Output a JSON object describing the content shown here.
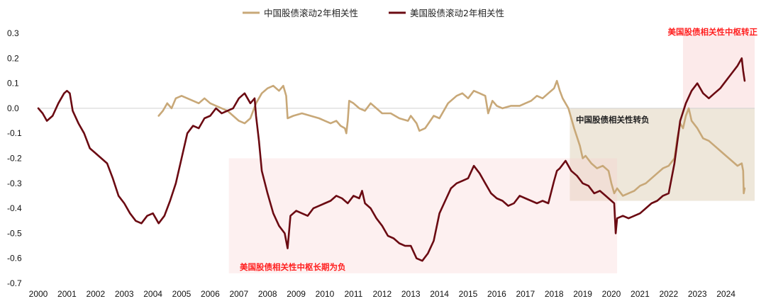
{
  "chart_data": {
    "type": "line",
    "ylim": [
      -0.7,
      0.3
    ],
    "xlim": [
      2000,
      2025
    ],
    "yticks": [
      "0.3",
      "0.2",
      "0.1",
      "0.0",
      "-0.1",
      "-0.2",
      "-0.3",
      "-0.4",
      "-0.5",
      "-0.6",
      "-0.7"
    ],
    "xticks": [
      "2000",
      "2001",
      "2002",
      "2003",
      "2004",
      "2005",
      "2006",
      "2007",
      "2008",
      "2009",
      "2010",
      "2011",
      "2012",
      "2013",
      "2014",
      "2015",
      "2016",
      "2017",
      "2018",
      "2019",
      "2020",
      "2021",
      "2022",
      "2023",
      "2024"
    ],
    "legend_position": "top-center",
    "series": [
      {
        "name": "中国股债滚动2年相关性",
        "color": "#c8a878",
        "x": [
          2004.2,
          2004.35,
          2004.5,
          2004.65,
          2004.8,
          2005.0,
          2005.2,
          2005.4,
          2005.6,
          2005.8,
          2006.0,
          2006.2,
          2006.4,
          2006.6,
          2006.8,
          2007.0,
          2007.2,
          2007.4,
          2007.6,
          2007.8,
          2008.0,
          2008.2,
          2008.4,
          2008.55,
          2008.65,
          2008.7,
          2008.9,
          2009.2,
          2009.5,
          2009.8,
          2010.0,
          2010.2,
          2010.4,
          2010.55,
          2010.7,
          2010.75,
          2010.8,
          2010.85,
          2011.0,
          2011.2,
          2011.4,
          2011.6,
          2011.8,
          2012.0,
          2012.3,
          2012.6,
          2012.9,
          2013.0,
          2013.2,
          2013.3,
          2013.5,
          2013.8,
          2014.0,
          2014.3,
          2014.6,
          2014.8,
          2015.0,
          2015.2,
          2015.4,
          2015.6,
          2015.7,
          2015.85,
          2016.0,
          2016.2,
          2016.5,
          2016.8,
          2017.0,
          2017.2,
          2017.4,
          2017.6,
          2017.8,
          2018.0,
          2018.1,
          2018.2,
          2018.3,
          2018.5,
          2018.7,
          2018.9,
          2019.0,
          2019.1,
          2019.3,
          2019.5,
          2019.7,
          2019.9,
          2020.0,
          2020.1,
          2020.2,
          2020.4,
          2020.6,
          2020.8,
          2021.0,
          2021.2,
          2021.4,
          2021.6,
          2021.8,
          2022.0,
          2022.2,
          2022.3,
          2022.4,
          2022.5,
          2022.6,
          2022.7,
          2022.8,
          2023.0,
          2023.2,
          2023.4,
          2023.6,
          2023.8,
          2024.0,
          2024.2,
          2024.4,
          2024.55,
          2024.6,
          2024.62,
          2024.65
        ],
        "values": [
          -0.03,
          -0.01,
          0.02,
          0.0,
          0.04,
          0.05,
          0.04,
          0.03,
          0.02,
          0.04,
          0.02,
          0.01,
          0.0,
          -0.01,
          -0.03,
          -0.05,
          -0.06,
          -0.04,
          0.02,
          0.06,
          0.08,
          0.09,
          0.07,
          0.09,
          0.05,
          -0.04,
          -0.03,
          -0.02,
          -0.03,
          -0.04,
          -0.05,
          -0.06,
          -0.05,
          -0.07,
          -0.08,
          -0.1,
          -0.05,
          0.03,
          0.02,
          0.0,
          -0.01,
          0.02,
          0.0,
          -0.02,
          -0.02,
          -0.04,
          -0.05,
          -0.03,
          -0.06,
          -0.09,
          -0.08,
          -0.03,
          -0.04,
          0.02,
          0.05,
          0.06,
          0.04,
          0.07,
          0.06,
          0.05,
          -0.02,
          0.03,
          0.01,
          0.0,
          0.01,
          0.01,
          0.02,
          0.03,
          0.05,
          0.04,
          0.06,
          0.08,
          0.11,
          0.07,
          0.04,
          0.0,
          -0.08,
          -0.15,
          -0.2,
          -0.19,
          -0.22,
          -0.24,
          -0.23,
          -0.25,
          -0.3,
          -0.34,
          -0.32,
          -0.35,
          -0.34,
          -0.33,
          -0.31,
          -0.3,
          -0.28,
          -0.26,
          -0.24,
          -0.23,
          -0.2,
          -0.12,
          -0.06,
          -0.08,
          -0.03,
          0.0,
          -0.05,
          -0.08,
          -0.12,
          -0.13,
          -0.15,
          -0.17,
          -0.19,
          -0.21,
          -0.23,
          -0.22,
          -0.25,
          -0.34,
          -0.32
        ]
      },
      {
        "name": "美国股债滚动2年相关性",
        "color": "#6b0a12",
        "x": [
          2000.0,
          2000.15,
          2000.3,
          2000.5,
          2000.7,
          2000.9,
          2001.0,
          2001.1,
          2001.2,
          2001.4,
          2001.6,
          2001.8,
          2002.0,
          2002.2,
          2002.4,
          2002.6,
          2002.8,
          2003.0,
          2003.2,
          2003.4,
          2003.6,
          2003.8,
          2004.0,
          2004.2,
          2004.4,
          2004.6,
          2004.8,
          2005.0,
          2005.2,
          2005.4,
          2005.6,
          2005.8,
          2006.0,
          2006.2,
          2006.4,
          2006.6,
          2006.8,
          2007.0,
          2007.2,
          2007.4,
          2007.55,
          2007.6,
          2007.7,
          2007.8,
          2008.0,
          2008.2,
          2008.4,
          2008.6,
          2008.7,
          2008.8,
          2009.0,
          2009.2,
          2009.4,
          2009.6,
          2009.8,
          2010.0,
          2010.2,
          2010.4,
          2010.6,
          2010.8,
          2011.0,
          2011.2,
          2011.3,
          2011.4,
          2011.6,
          2011.8,
          2012.0,
          2012.2,
          2012.4,
          2012.6,
          2012.8,
          2013.0,
          2013.2,
          2013.4,
          2013.6,
          2013.8,
          2014.0,
          2014.2,
          2014.4,
          2014.6,
          2014.8,
          2015.0,
          2015.2,
          2015.4,
          2015.6,
          2015.8,
          2016.0,
          2016.2,
          2016.4,
          2016.6,
          2016.8,
          2017.0,
          2017.2,
          2017.4,
          2017.6,
          2017.8,
          2018.0,
          2018.1,
          2018.2,
          2018.4,
          2018.6,
          2018.8,
          2019.0,
          2019.2,
          2019.4,
          2019.6,
          2019.8,
          2020.0,
          2020.1,
          2020.15,
          2020.2,
          2020.4,
          2020.6,
          2020.8,
          2021.0,
          2021.2,
          2021.4,
          2021.6,
          2021.8,
          2022.0,
          2022.2,
          2022.4,
          2022.6,
          2022.8,
          2023.0,
          2023.2,
          2023.4,
          2023.6,
          2023.8,
          2024.0,
          2024.2,
          2024.4,
          2024.55,
          2024.6,
          2024.65
        ],
        "values": [
          0.0,
          -0.02,
          -0.05,
          -0.03,
          0.02,
          0.06,
          0.07,
          0.06,
          -0.01,
          -0.06,
          -0.1,
          -0.16,
          -0.18,
          -0.2,
          -0.22,
          -0.28,
          -0.35,
          -0.38,
          -0.42,
          -0.45,
          -0.46,
          -0.43,
          -0.42,
          -0.46,
          -0.43,
          -0.37,
          -0.3,
          -0.2,
          -0.1,
          -0.07,
          -0.08,
          -0.04,
          -0.03,
          0.0,
          -0.02,
          -0.01,
          0.0,
          0.04,
          0.06,
          0.02,
          0.04,
          -0.03,
          -0.13,
          -0.25,
          -0.34,
          -0.42,
          -0.47,
          -0.5,
          -0.56,
          -0.43,
          -0.41,
          -0.42,
          -0.43,
          -0.4,
          -0.39,
          -0.38,
          -0.37,
          -0.35,
          -0.36,
          -0.38,
          -0.35,
          -0.36,
          -0.33,
          -0.38,
          -0.4,
          -0.44,
          -0.47,
          -0.51,
          -0.52,
          -0.54,
          -0.55,
          -0.55,
          -0.6,
          -0.61,
          -0.58,
          -0.53,
          -0.42,
          -0.37,
          -0.32,
          -0.3,
          -0.29,
          -0.28,
          -0.23,
          -0.26,
          -0.3,
          -0.34,
          -0.36,
          -0.37,
          -0.39,
          -0.38,
          -0.35,
          -0.36,
          -0.37,
          -0.38,
          -0.37,
          -0.38,
          -0.29,
          -0.25,
          -0.24,
          -0.21,
          -0.25,
          -0.27,
          -0.3,
          -0.31,
          -0.34,
          -0.33,
          -0.35,
          -0.37,
          -0.38,
          -0.5,
          -0.44,
          -0.43,
          -0.44,
          -0.43,
          -0.42,
          -0.4,
          -0.38,
          -0.37,
          -0.35,
          -0.34,
          -0.22,
          -0.05,
          0.02,
          0.07,
          0.1,
          0.06,
          0.04,
          0.06,
          0.08,
          0.11,
          0.14,
          0.17,
          0.2,
          0.15,
          0.11
        ]
      }
    ],
    "annotations": [
      {
        "text": "美国股债相关性中枢转正",
        "color": "#ff2020",
        "fill": "rgba(245,190,190,0.32)",
        "x0": 2022.5,
        "x1": 2025.4,
        "y0": 0.3,
        "y1": 0.0
      },
      {
        "text": "中国股债相关性转负",
        "color": "#222222",
        "fill": "rgba(205,185,150,0.35)",
        "x0": 2018.55,
        "x1": 2025.4,
        "y0": 0.0,
        "y1": -0.37
      },
      {
        "text": "美国股债相关性中枢长期为负",
        "color": "#ff2020",
        "fill": "rgba(250,205,205,0.30)",
        "x0": 2006.65,
        "x1": 2020.2,
        "y0": -0.2,
        "y1": -0.66
      }
    ]
  }
}
